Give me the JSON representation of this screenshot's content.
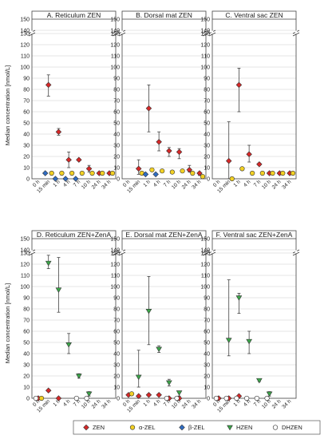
{
  "figure": {
    "ylabel": "Median concentration [nmol/L]",
    "x_ticks": [
      "0 h",
      "15 min",
      "1 h",
      "4 h",
      "7 h",
      "10 h",
      "24 h",
      "34 h"
    ],
    "y_ticks": [
      "0",
      "10",
      "20",
      "30",
      "40",
      "50",
      "60",
      "70",
      "80",
      "90",
      "100",
      "110",
      "120",
      "130",
      "140",
      "150"
    ]
  },
  "legend": {
    "items": [
      {
        "label": "ZEN",
        "marker": "diamond",
        "color": "#d62828"
      },
      {
        "label": "α-ZEL",
        "marker": "circle",
        "color": "#f2d024"
      },
      {
        "label": "β-ZEL",
        "marker": "diamond",
        "color": "#2f6dc4"
      },
      {
        "label": "HZEN",
        "marker": "triangle",
        "color": "#3ca64a"
      },
      {
        "label": "DHZEN",
        "marker": "circle",
        "color": "#ffffff"
      }
    ]
  },
  "chart_data": [
    {
      "type": "scatter",
      "title": "A. Reticulum ZEN",
      "ylim": [
        0,
        150
      ],
      "axis_break": [
        130,
        140
      ],
      "grid": true,
      "x": [
        "0 h",
        "15 min",
        "1 h",
        "4 h",
        "7 h",
        "10 h",
        "24 h",
        "34 h"
      ],
      "series": [
        {
          "name": "ZEN",
          "values": [
            null,
            84,
            42,
            17,
            17,
            9,
            5,
            5
          ],
          "err_low": [
            null,
            74,
            39,
            10,
            16,
            6,
            4,
            4
          ],
          "err_high": [
            null,
            93,
            45,
            24,
            18,
            12,
            6,
            6
          ]
        },
        {
          "name": "α-ZEL",
          "values": [
            null,
            5,
            5,
            5,
            5,
            5,
            5,
            5
          ]
        },
        {
          "name": "β-ZEL",
          "values": [
            null,
            5,
            0,
            0,
            0,
            null,
            null,
            null
          ]
        },
        {
          "name": "HZEN",
          "values": [
            null,
            null,
            null,
            null,
            null,
            null,
            null,
            null
          ]
        },
        {
          "name": "DHZEN",
          "values": [
            null,
            null,
            null,
            null,
            null,
            null,
            null,
            null
          ]
        }
      ]
    },
    {
      "type": "scatter",
      "title": "B. Dorsal mat ZEN",
      "ylim": [
        0,
        150
      ],
      "axis_break": [
        130,
        140
      ],
      "grid": true,
      "x": [
        "0 h",
        "15 min",
        "1 h",
        "4 h",
        "7 h",
        "10 h",
        "24 h",
        "34 h"
      ],
      "series": [
        {
          "name": "ZEN",
          "values": [
            null,
            9,
            63,
            33,
            25,
            24,
            8,
            5
          ],
          "err_low": [
            null,
            4,
            42,
            25,
            20,
            18,
            6,
            3
          ],
          "err_high": [
            null,
            17,
            84,
            42,
            28,
            27,
            12,
            6
          ]
        },
        {
          "name": "α-ZEL",
          "values": [
            null,
            5,
            8,
            7,
            6,
            7,
            5,
            2
          ]
        },
        {
          "name": "β-ZEL",
          "values": [
            null,
            null,
            4,
            4,
            null,
            null,
            null,
            null
          ]
        },
        {
          "name": "HZEN",
          "values": [
            null,
            null,
            null,
            null,
            null,
            null,
            null,
            null
          ]
        },
        {
          "name": "DHZEN",
          "values": [
            null,
            null,
            null,
            null,
            null,
            null,
            null,
            null
          ]
        }
      ]
    },
    {
      "type": "scatter",
      "title": "C. Ventral sac ZEN",
      "ylim": [
        0,
        150
      ],
      "axis_break": [
        130,
        140
      ],
      "grid": true,
      "x": [
        "0 h",
        "15 min",
        "1 h",
        "4 h",
        "7 h",
        "10 h",
        "24 h",
        "34 h"
      ],
      "series": [
        {
          "name": "ZEN",
          "values": [
            null,
            16,
            84,
            22,
            13,
            5,
            5,
            5
          ],
          "err_low": [
            null,
            0,
            60,
            15,
            12,
            4,
            4,
            4
          ],
          "err_high": [
            null,
            51,
            99,
            30,
            14,
            6,
            6,
            6
          ]
        },
        {
          "name": "α-ZEL",
          "values": [
            null,
            0,
            9,
            5,
            5,
            5,
            5,
            5
          ]
        },
        {
          "name": "β-ZEL",
          "values": [
            null,
            null,
            null,
            null,
            null,
            null,
            null,
            null
          ]
        },
        {
          "name": "HZEN",
          "values": [
            null,
            null,
            null,
            null,
            null,
            null,
            null,
            null
          ]
        },
        {
          "name": "DHZEN",
          "values": [
            null,
            null,
            null,
            null,
            null,
            null,
            null,
            null
          ]
        }
      ]
    },
    {
      "type": "scatter",
      "title": "D. Reticulum ZEN+ZenA",
      "ylim": [
        0,
        150
      ],
      "axis_break": [
        130,
        140
      ],
      "grid": true,
      "x": [
        "0 h",
        "15 min",
        "1 h",
        "4 h",
        "7 h",
        "10 h",
        "24 h",
        "34 h"
      ],
      "series": [
        {
          "name": "ZEN",
          "values": [
            0,
            7,
            0,
            null,
            null,
            null,
            null,
            null
          ]
        },
        {
          "name": "α-ZEL",
          "values": [
            0,
            null,
            null,
            null,
            null,
            null,
            null,
            null
          ]
        },
        {
          "name": "β-ZEL",
          "values": [
            null,
            null,
            null,
            null,
            null,
            null,
            null,
            null
          ]
        },
        {
          "name": "HZEN",
          "values": [
            null,
            121,
            97,
            48,
            20,
            4,
            null,
            null
          ],
          "err_low": [
            null,
            116,
            77,
            40,
            18,
            2,
            null,
            null
          ],
          "err_high": [
            null,
            128,
            126,
            58,
            22,
            6,
            null,
            null
          ]
        },
        {
          "name": "DHZEN",
          "values": [
            0,
            null,
            null,
            null,
            0,
            0,
            null,
            null
          ]
        }
      ]
    },
    {
      "type": "scatter",
      "title": "E. Dorsal mat ZEN+ZenA",
      "ylim": [
        0,
        150
      ],
      "axis_break": [
        130,
        140
      ],
      "grid": true,
      "x": [
        "0 h",
        "15 min",
        "1 h",
        "4 h",
        "7 h",
        "10 h",
        "24 h",
        "34 h"
      ],
      "series": [
        {
          "name": "ZEN",
          "values": [
            3,
            2,
            3,
            3,
            0,
            0,
            null,
            null
          ]
        },
        {
          "name": "α-ZEL",
          "values": [
            4,
            null,
            null,
            null,
            null,
            null,
            null,
            null
          ]
        },
        {
          "name": "β-ZEL",
          "values": [
            null,
            null,
            null,
            null,
            null,
            null,
            null,
            null
          ]
        },
        {
          "name": "HZEN",
          "values": [
            null,
            19,
            78,
            44,
            14,
            5,
            null,
            null
          ],
          "err_low": [
            null,
            10,
            48,
            41,
            11,
            2,
            null,
            null
          ],
          "err_high": [
            null,
            43,
            109,
            47,
            17,
            6,
            null,
            null
          ]
        },
        {
          "name": "DHZEN",
          "values": [
            null,
            null,
            null,
            null,
            0,
            0,
            null,
            null
          ]
        }
      ]
    },
    {
      "type": "scatter",
      "title": "F. Ventral sac ZEN+ZenA",
      "ylim": [
        0,
        150
      ],
      "axis_break": [
        130,
        140
      ],
      "grid": true,
      "x": [
        "0 h",
        "15 min",
        "1 h",
        "4 h",
        "7 h",
        "10 h",
        "24 h",
        "34 h"
      ],
      "series": [
        {
          "name": "ZEN",
          "values": [
            0,
            0,
            2,
            null,
            null,
            null,
            null,
            null
          ]
        },
        {
          "name": "α-ZEL",
          "values": [
            null,
            null,
            null,
            null,
            null,
            null,
            null,
            null
          ]
        },
        {
          "name": "β-ZEL",
          "values": [
            null,
            null,
            null,
            null,
            null,
            null,
            null,
            null
          ]
        },
        {
          "name": "HZEN",
          "values": [
            null,
            52,
            90,
            51,
            16,
            4,
            null,
            null
          ],
          "err_low": [
            null,
            38,
            76,
            40,
            15,
            2,
            null,
            null
          ],
          "err_high": [
            null,
            106,
            94,
            60,
            17,
            6,
            null,
            null
          ]
        },
        {
          "name": "DHZEN",
          "values": [
            0,
            0,
            0,
            0,
            0,
            0,
            null,
            null
          ]
        }
      ]
    }
  ]
}
